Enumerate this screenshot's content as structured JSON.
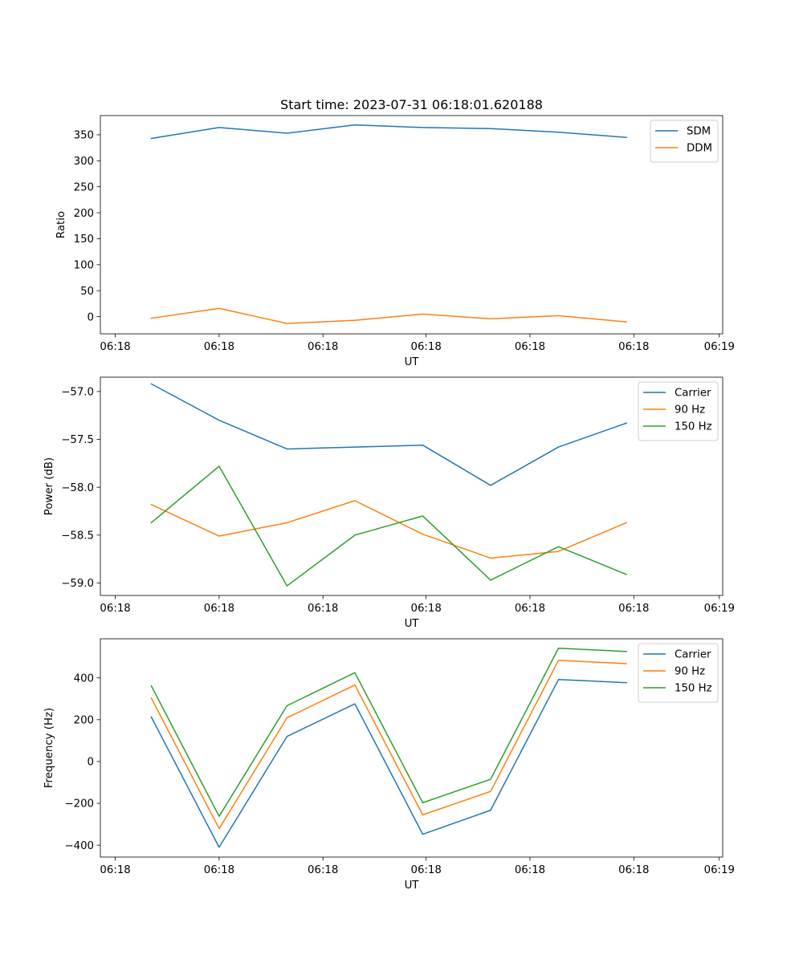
{
  "figure_title": "Start time: 2023-07-31 06:18:01.620188",
  "chart_data": [
    {
      "type": "line",
      "title": "Start time: 2023-07-31 06:18:01.620188",
      "xlabel": "UT",
      "ylabel": "Ratio",
      "x": [
        1,
        2,
        3,
        4,
        5,
        6,
        7,
        8
      ],
      "xlim": [
        0.25,
        9.42
      ],
      "xticks": [
        0.47,
        2.0,
        3.53,
        5.05,
        6.58,
        8.11,
        9.37
      ],
      "xtick_labels": [
        "06:18",
        "06:18",
        "06:18",
        "06:18",
        "06:18",
        "06:18",
        "06:19"
      ],
      "ylim": [
        -33,
        387
      ],
      "yticks": [
        0,
        50,
        100,
        150,
        200,
        250,
        300,
        350
      ],
      "ytick_labels": [
        "0",
        "50",
        "100",
        "150",
        "200",
        "250",
        "300",
        "350"
      ],
      "legend_position": "top-right",
      "series": [
        {
          "name": "SDM",
          "color": "#1f77b4",
          "values": [
            343,
            364,
            353,
            369,
            364,
            362,
            355,
            345
          ]
        },
        {
          "name": "DDM",
          "color": "#ff7f0e",
          "values": [
            -3,
            16,
            -13,
            -7,
            5,
            -4,
            2,
            -10
          ]
        }
      ]
    },
    {
      "type": "line",
      "title": "",
      "xlabel": "UT",
      "ylabel": "Power (dB)",
      "x": [
        1,
        2,
        3,
        4,
        5,
        6,
        7,
        8
      ],
      "xlim": [
        0.25,
        9.42
      ],
      "xticks": [
        0.47,
        2.0,
        3.53,
        5.05,
        6.58,
        8.11,
        9.37
      ],
      "xtick_labels": [
        "06:18",
        "06:18",
        "06:18",
        "06:18",
        "06:18",
        "06:18",
        "06:19"
      ],
      "ylim": [
        -59.13,
        -56.85
      ],
      "yticks": [
        -57.0,
        -57.5,
        -58.0,
        -58.5,
        -59.0
      ],
      "ytick_labels": [
        "−57.0",
        "−57.5",
        "−58.0",
        "−58.5",
        "−59.0"
      ],
      "legend_position": "top-right",
      "series": [
        {
          "name": "Carrier",
          "color": "#1f77b4",
          "values": [
            -56.92,
            -57.3,
            -57.6,
            -57.58,
            -57.56,
            -57.98,
            -57.58,
            -57.33
          ]
        },
        {
          "name": "90 Hz",
          "color": "#ff7f0e",
          "values": [
            -58.18,
            -58.51,
            -58.37,
            -58.14,
            -58.49,
            -58.74,
            -58.67,
            -58.37
          ]
        },
        {
          "name": "150 Hz",
          "color": "#2ca02c",
          "values": [
            -58.37,
            -57.78,
            -59.03,
            -58.5,
            -58.3,
            -58.97,
            -58.62,
            -58.91
          ]
        }
      ]
    },
    {
      "type": "line",
      "title": "",
      "xlabel": "UT",
      "ylabel": "Frequency (Hz)",
      "x": [
        1,
        2,
        3,
        4,
        5,
        6,
        7,
        8
      ],
      "xlim": [
        0.25,
        9.42
      ],
      "xticks": [
        0.47,
        2.0,
        3.53,
        5.05,
        6.58,
        8.11,
        9.37
      ],
      "xtick_labels": [
        "06:18",
        "06:18",
        "06:18",
        "06:18",
        "06:18",
        "06:18",
        "06:19"
      ],
      "ylim": [
        -457,
        587
      ],
      "yticks": [
        -400,
        -200,
        0,
        200,
        400
      ],
      "ytick_labels": [
        "−400",
        "−200",
        "0",
        "200",
        "400"
      ],
      "legend_position": "top-right",
      "series": [
        {
          "name": "Carrier",
          "color": "#1f77b4",
          "values": [
            213,
            -410,
            120,
            276,
            -348,
            -233,
            392,
            377
          ]
        },
        {
          "name": "90 Hz",
          "color": "#ff7f0e",
          "values": [
            304,
            -321,
            209,
            366,
            -255,
            -143,
            484,
            468
          ]
        },
        {
          "name": "150 Hz",
          "color": "#2ca02c",
          "values": [
            362,
            -262,
            267,
            425,
            -197,
            -85,
            542,
            526
          ]
        }
      ]
    }
  ]
}
